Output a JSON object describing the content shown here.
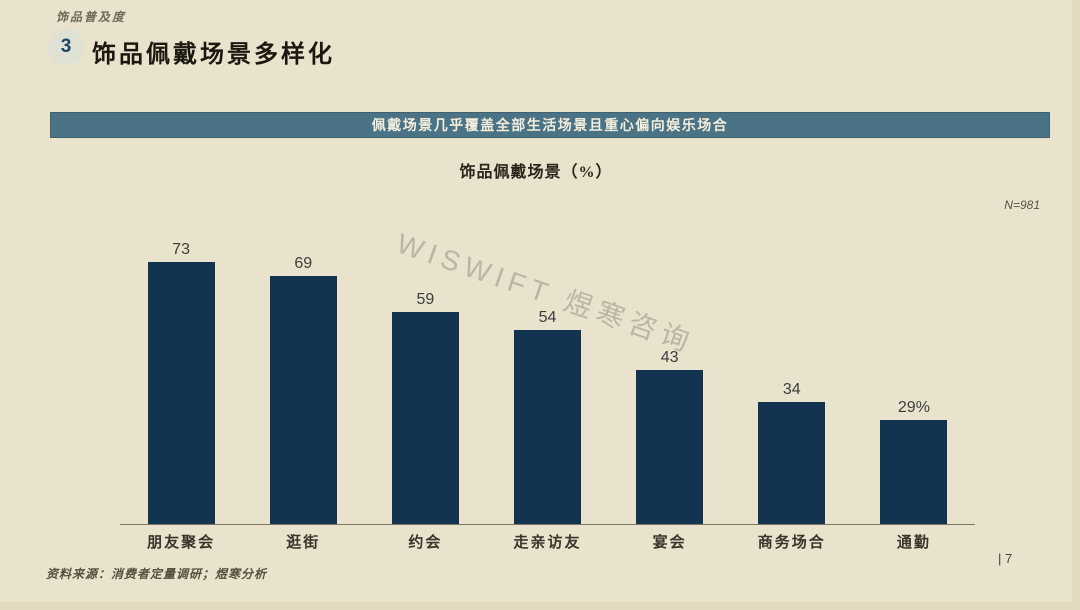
{
  "page": {
    "kicker": "饰品普及度",
    "section_number": "3",
    "title": "饰品佩戴场景多样化",
    "banner": "佩戴场景几乎覆盖全部生活场景且重心偏向娱乐场合",
    "sample_note": "N=981",
    "watermark": "WISWIFT 煜寒咨询",
    "source": "资料来源：消费者定量调研；煜寒分析",
    "page_number": "| 7"
  },
  "colors": {
    "slide_background": "#E9E3CD",
    "edge_background": "#E2DBC0",
    "bar": "#123450",
    "banner_background": "#4A7386",
    "banner_text": "#F3EEDB",
    "title_text": "#1C1810",
    "muted_text": "#55514A",
    "watermark_text": "#8C897D"
  },
  "chart_data": {
    "type": "bar",
    "title": "饰品佩戴场景（%）",
    "categories": [
      "朋友聚会",
      "逛街",
      "约会",
      "走亲访友",
      "宴会",
      "商务场合",
      "通勤"
    ],
    "values": [
      73,
      69,
      59,
      54,
      43,
      34,
      29
    ],
    "value_labels": [
      "73",
      "69",
      "59",
      "54",
      "43",
      "34",
      "29%"
    ],
    "unit": "%",
    "ylim": [
      0,
      80
    ],
    "grid": false,
    "legend": "none",
    "sample_size": "N=981"
  }
}
